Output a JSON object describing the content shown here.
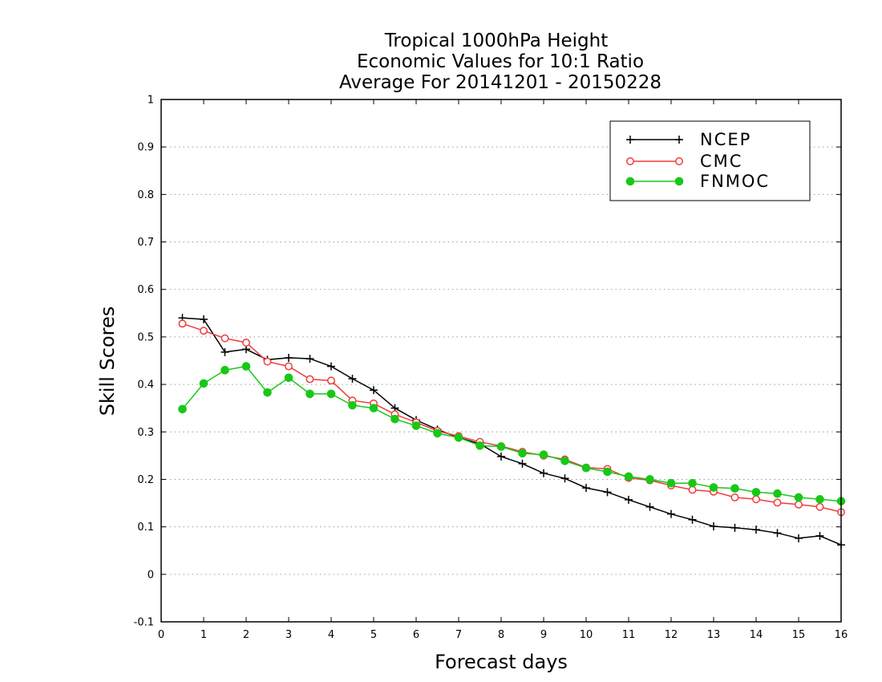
{
  "chart_data": {
    "type": "line",
    "title_lines": [
      "Tropical 1000hPa Height",
      "Economic Values for 10:1 Ratio",
      "Average For 20141201 - 20150228"
    ],
    "xlabel": "Forecast days",
    "ylabel": "Skill Scores",
    "xlim": [
      0,
      16
    ],
    "ylim": [
      -0.1,
      1
    ],
    "x_ticks": [
      0,
      1,
      2,
      3,
      4,
      5,
      6,
      7,
      8,
      9,
      10,
      11,
      12,
      13,
      14,
      15,
      16
    ],
    "x_tick_labels": [
      "0",
      "1",
      "2",
      "3",
      "4",
      "5",
      "6",
      "7",
      "8",
      "9",
      "10",
      "11",
      "12",
      "13",
      "14",
      "15",
      "16"
    ],
    "y_ticks": [
      -0.1,
      0,
      0.1,
      0.2,
      0.3,
      0.4,
      0.5,
      0.6,
      0.7,
      0.8,
      0.9,
      1
    ],
    "y_tick_labels": [
      "-0.1",
      "0",
      "0.1",
      "0.2",
      "0.3",
      "0.4",
      "0.5",
      "0.6",
      "0.7",
      "0.8",
      "0.9",
      "1"
    ],
    "grid": "horizontal dotted",
    "legend_position": "top-right",
    "x": [
      0.5,
      1,
      1.5,
      2,
      2.5,
      3,
      3.5,
      4,
      4.5,
      5,
      5.5,
      6,
      6.5,
      7,
      7.5,
      8,
      8.5,
      9,
      9.5,
      10,
      10.5,
      11,
      11.5,
      12,
      12.5,
      13,
      13.5,
      14,
      14.5,
      15,
      15.5,
      16
    ],
    "series": [
      {
        "name": "NCEP",
        "color": "#000000",
        "marker": "plus",
        "values": [
          0.54,
          0.537,
          0.468,
          0.474,
          0.452,
          0.456,
          0.454,
          0.438,
          0.412,
          0.388,
          0.35,
          0.325,
          0.305,
          0.288,
          0.275,
          0.248,
          0.233,
          0.213,
          0.202,
          0.182,
          0.173,
          0.157,
          0.142,
          0.127,
          0.115,
          0.101,
          0.098,
          0.094,
          0.087,
          0.076,
          0.081,
          0.062
        ]
      },
      {
        "name": "CMC",
        "color": "#f03c3c",
        "marker": "open-circle",
        "values": [
          0.528,
          0.513,
          0.497,
          0.488,
          0.448,
          0.438,
          0.411,
          0.408,
          0.366,
          0.36,
          0.337,
          0.32,
          0.302,
          0.291,
          0.279,
          0.27,
          0.258,
          0.25,
          0.242,
          0.225,
          0.222,
          0.203,
          0.198,
          0.187,
          0.178,
          0.174,
          0.162,
          0.158,
          0.151,
          0.147,
          0.142,
          0.131
        ]
      },
      {
        "name": "FNMOC",
        "color": "#18c818",
        "marker": "filled-circle",
        "values": [
          0.348,
          0.402,
          0.43,
          0.438,
          0.383,
          0.414,
          0.38,
          0.38,
          0.356,
          0.35,
          0.327,
          0.313,
          0.297,
          0.288,
          0.271,
          0.269,
          0.255,
          0.252,
          0.239,
          0.224,
          0.216,
          0.206,
          0.2,
          0.192,
          0.192,
          0.183,
          0.181,
          0.173,
          0.17,
          0.162,
          0.158,
          0.154
        ]
      }
    ]
  }
}
